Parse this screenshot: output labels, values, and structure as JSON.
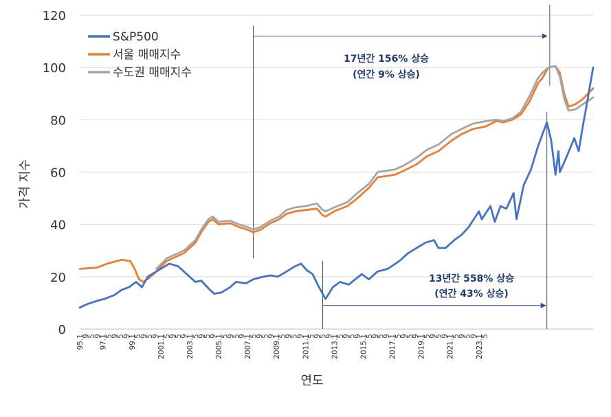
{
  "chart_data": {
    "type": "line",
    "xlabel": "연도",
    "ylabel": "가격 지수",
    "ylim": [
      0,
      120
    ],
    "y_ticks": [
      0,
      20,
      40,
      60,
      80,
      100,
      120
    ],
    "x_range": [
      "1995-01",
      "2024-08"
    ],
    "x_ticks": [
      "95.1",
      "9",
      "5",
      "9",
      "97.1",
      "5",
      "9",
      "5",
      "9",
      "99.1",
      "5",
      "9",
      "5",
      "9",
      "2001.1",
      "5",
      "9",
      "5",
      "9",
      "2003.1",
      "5",
      "9",
      "5",
      "9",
      "2005.1",
      "5",
      "9",
      "5",
      "9",
      "2007.1",
      "5",
      "9",
      "5",
      "9",
      "2009.1",
      "5",
      "9",
      "5",
      "9",
      "2011.1",
      "5",
      "9",
      "5",
      "9",
      "2013.1",
      "5",
      "9",
      "5",
      "9",
      "2015.1",
      "5",
      "9",
      "5",
      "9",
      "2017.1",
      "5",
      "9",
      "5",
      "9",
      "2019.1",
      "5",
      "9",
      "5",
      "9",
      "2021.1",
      "5",
      "9",
      "5",
      "9",
      "2023.1",
      "5"
    ],
    "grid": true,
    "legend_position": "top-left",
    "series": [
      {
        "name": "S&P500",
        "color": "#4472c4",
        "points": [
          [
            "1995-01",
            8.2
          ],
          [
            "1995-06",
            9.5
          ],
          [
            "1996-01",
            10.8
          ],
          [
            "1996-06",
            11.5
          ],
          [
            "1997-01",
            13
          ],
          [
            "1997-06",
            15
          ],
          [
            "1997-11",
            16
          ],
          [
            "1998-04",
            18
          ],
          [
            "1998-08",
            16
          ],
          [
            "1998-12",
            20
          ],
          [
            "1999-06",
            22
          ],
          [
            "1999-12",
            24
          ],
          [
            "2000-03",
            25
          ],
          [
            "2000-09",
            24
          ],
          [
            "2001-01",
            22
          ],
          [
            "2001-09",
            18
          ],
          [
            "2002-01",
            18.5
          ],
          [
            "2002-07",
            15
          ],
          [
            "2002-10",
            13.5
          ],
          [
            "2003-03",
            14
          ],
          [
            "2003-09",
            16
          ],
          [
            "2004-01",
            18
          ],
          [
            "2004-08",
            17.5
          ],
          [
            "2005-01",
            19
          ],
          [
            "2005-08",
            20
          ],
          [
            "2006-01",
            20.5
          ],
          [
            "2006-06",
            20
          ],
          [
            "2006-12",
            22
          ],
          [
            "2007-06",
            24
          ],
          [
            "2007-10",
            25
          ],
          [
            "2008-02",
            22.5
          ],
          [
            "2008-06",
            21
          ],
          [
            "2008-10",
            16.5
          ],
          [
            "2009-02",
            12.5
          ],
          [
            "2009-03",
            11.5
          ],
          [
            "2009-08",
            16
          ],
          [
            "2010-01",
            18
          ],
          [
            "2010-07",
            17
          ],
          [
            "2011-04",
            21
          ],
          [
            "2011-09",
            19
          ],
          [
            "2012-03",
            22
          ],
          [
            "2012-10",
            23
          ],
          [
            "2013-06",
            26
          ],
          [
            "2013-12",
            29
          ],
          [
            "2014-06",
            31
          ],
          [
            "2014-12",
            33
          ],
          [
            "2015-06",
            34
          ],
          [
            "2015-09",
            31
          ],
          [
            "2016-02",
            31
          ],
          [
            "2016-08",
            34
          ],
          [
            "2017-01",
            36
          ],
          [
            "2017-06",
            39
          ],
          [
            "2018-01",
            45
          ],
          [
            "2018-03",
            42
          ],
          [
            "2018-09",
            47
          ],
          [
            "2018-12",
            41
          ],
          [
            "2019-04",
            47
          ],
          [
            "2019-08",
            46
          ],
          [
            "2020-01",
            52
          ],
          [
            "2020-03",
            42
          ],
          [
            "2020-08",
            55
          ],
          [
            "2021-01",
            61
          ],
          [
            "2021-06",
            70
          ],
          [
            "2021-12",
            79
          ],
          [
            "2022-03",
            72
          ],
          [
            "2022-06",
            59
          ],
          [
            "2022-08",
            68
          ],
          [
            "2022-09",
            60
          ],
          [
            "2023-01",
            65
          ],
          [
            "2023-07",
            73
          ],
          [
            "2023-10",
            68
          ],
          [
            "2024-01",
            78
          ],
          [
            "2024-03",
            84
          ],
          [
            "2024-08",
            100
          ]
        ]
      },
      {
        "name": "서울 매매지수",
        "color": "#ed7d31",
        "points": [
          [
            "1995-01",
            23
          ],
          [
            "1996-01",
            23.5
          ],
          [
            "1996-08",
            25
          ],
          [
            "1997-06",
            26.5
          ],
          [
            "1997-12",
            26
          ],
          [
            "1998-03",
            23
          ],
          [
            "1998-06",
            19
          ],
          [
            "1998-09",
            18
          ],
          [
            "1999-01",
            19.5
          ],
          [
            "1999-06",
            22
          ],
          [
            "2000-01",
            26
          ],
          [
            "2000-09",
            28
          ],
          [
            "2001-01",
            29
          ],
          [
            "2001-09",
            33
          ],
          [
            "2002-01",
            37
          ],
          [
            "2002-06",
            41
          ],
          [
            "2002-09",
            42
          ],
          [
            "2003-01",
            40
          ],
          [
            "2003-09",
            40.5
          ],
          [
            "2004-03",
            39
          ],
          [
            "2004-09",
            38
          ],
          [
            "2005-01",
            37
          ],
          [
            "2005-06",
            38
          ],
          [
            "2006-01",
            40.5
          ],
          [
            "2006-07",
            42
          ],
          [
            "2006-12",
            44
          ],
          [
            "2007-06",
            45
          ],
          [
            "2008-01",
            45.5
          ],
          [
            "2008-09",
            46
          ],
          [
            "2009-01",
            43.5
          ],
          [
            "2009-03",
            43
          ],
          [
            "2009-09",
            45
          ],
          [
            "2010-06",
            47
          ],
          [
            "2011-01",
            50
          ],
          [
            "2011-09",
            54
          ],
          [
            "2012-03",
            58
          ],
          [
            "2012-09",
            58.5
          ],
          [
            "2013-03",
            59
          ],
          [
            "2013-09",
            60.5
          ],
          [
            "2014-06",
            63
          ],
          [
            "2015-01",
            66
          ],
          [
            "2015-09",
            68
          ],
          [
            "2016-06",
            72
          ],
          [
            "2017-01",
            74.5
          ],
          [
            "2017-09",
            76.5
          ],
          [
            "2018-06",
            77.5
          ],
          [
            "2019-01",
            79.5
          ],
          [
            "2019-06",
            79
          ],
          [
            "2019-12",
            80
          ],
          [
            "2020-06",
            82
          ],
          [
            "2020-12",
            87
          ],
          [
            "2021-06",
            94
          ],
          [
            "2021-09",
            96
          ],
          [
            "2022-01",
            100
          ],
          [
            "2022-06",
            100.5
          ],
          [
            "2022-09",
            98
          ],
          [
            "2022-12",
            90
          ],
          [
            "2023-03",
            85
          ],
          [
            "2023-08",
            86
          ],
          [
            "2024-01",
            88
          ],
          [
            "2024-08",
            92
          ]
        ]
      },
      {
        "name": "수도권 매매지수",
        "color": "#a5a5a5",
        "points": [
          [
            "1999-06",
            23
          ],
          [
            "2000-01",
            27
          ],
          [
            "2000-09",
            29
          ],
          [
            "2001-01",
            30
          ],
          [
            "2001-09",
            34
          ],
          [
            "2002-01",
            38
          ],
          [
            "2002-06",
            42
          ],
          [
            "2002-09",
            43
          ],
          [
            "2003-01",
            41
          ],
          [
            "2003-09",
            41.5
          ],
          [
            "2004-03",
            40
          ],
          [
            "2004-09",
            39
          ],
          [
            "2005-01",
            38
          ],
          [
            "2005-06",
            39
          ],
          [
            "2006-01",
            41.5
          ],
          [
            "2006-07",
            43
          ],
          [
            "2006-12",
            45.5
          ],
          [
            "2007-06",
            46.5
          ],
          [
            "2008-01",
            47
          ],
          [
            "2008-09",
            48
          ],
          [
            "2009-01",
            45.5
          ],
          [
            "2009-03",
            45
          ],
          [
            "2009-09",
            46.5
          ],
          [
            "2010-06",
            48.5
          ],
          [
            "2011-01",
            52
          ],
          [
            "2011-09",
            55.5
          ],
          [
            "2012-03",
            60
          ],
          [
            "2012-09",
            60.5
          ],
          [
            "2013-03",
            61
          ],
          [
            "2013-09",
            62.5
          ],
          [
            "2014-06",
            65.5
          ],
          [
            "2015-01",
            68.5
          ],
          [
            "2015-09",
            70.5
          ],
          [
            "2016-06",
            74.5
          ],
          [
            "2017-01",
            76.5
          ],
          [
            "2017-09",
            78.5
          ],
          [
            "2018-06",
            79.5
          ],
          [
            "2019-01",
            80
          ],
          [
            "2019-06",
            79.5
          ],
          [
            "2019-12",
            80.5
          ],
          [
            "2020-06",
            83
          ],
          [
            "2020-12",
            89
          ],
          [
            "2021-06",
            96
          ],
          [
            "2021-09",
            98
          ],
          [
            "2022-01",
            100
          ],
          [
            "2022-06",
            100.5
          ],
          [
            "2022-09",
            96.5
          ],
          [
            "2022-12",
            88
          ],
          [
            "2023-03",
            83.5
          ],
          [
            "2023-08",
            84
          ],
          [
            "2024-01",
            86
          ],
          [
            "2024-08",
            88.5
          ]
        ]
      }
    ],
    "annotations": [
      {
        "line1": "17년간 156% 상승",
        "line2": "(연간 9% 상승)",
        "from": "2005-01",
        "to": "2022-01",
        "y": 112
      },
      {
        "line1": "13년간 558% 상승",
        "line2": "(연간 43% 상승)",
        "from": "2009-01",
        "to": "2021-12",
        "y": 9
      }
    ],
    "reference_lines": [
      {
        "x": "2005-01",
        "y_from": 27,
        "y_to": 116
      },
      {
        "x": "2009-01",
        "y_from": 0,
        "y_to": 26
      },
      {
        "x": "2021-12",
        "y_from": 0,
        "y_to": 83
      },
      {
        "x": "2022-02",
        "y_from": 93,
        "y_to": 124
      }
    ]
  }
}
